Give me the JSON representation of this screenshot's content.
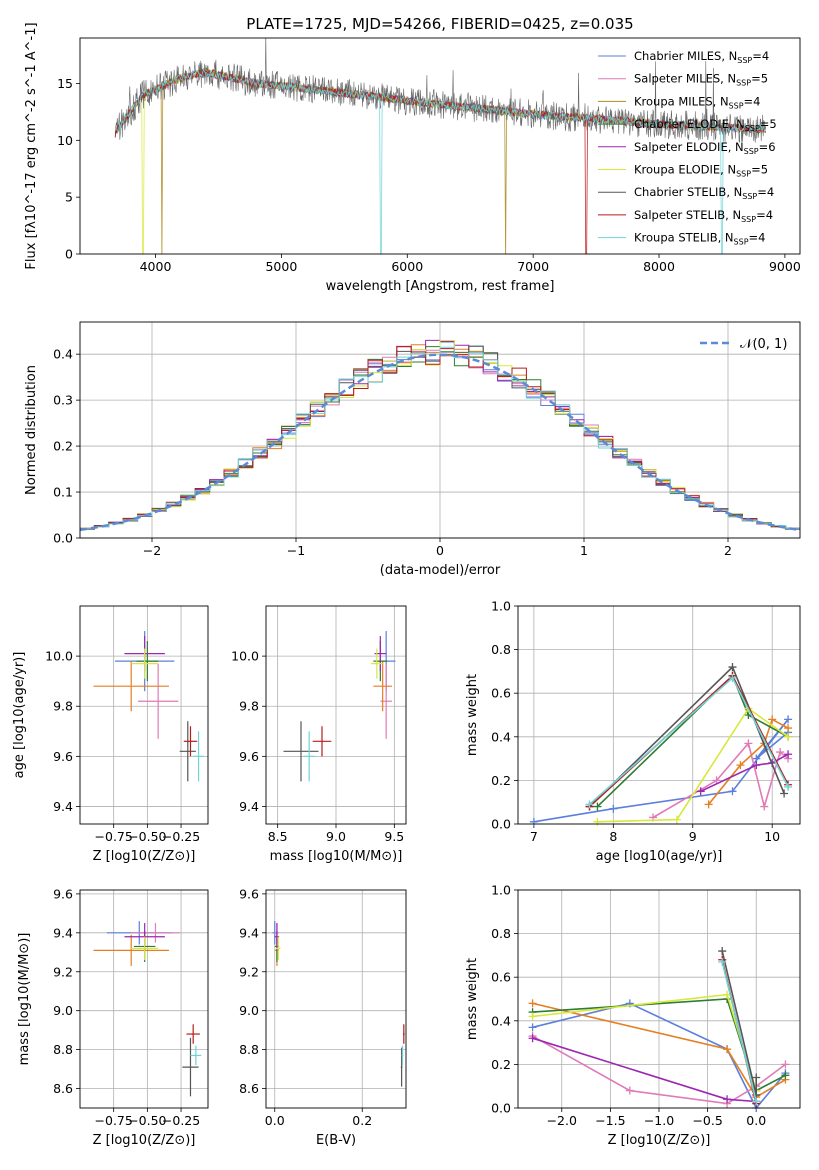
{
  "chart_data": [
    {
      "type": "line",
      "title": "PLATE=1725, MJD=54266, FIBERID=0425, z=0.035",
      "xlabel": "wavelength [Angstrom, rest frame]",
      "ylabel": "Flux [fλ10^-17 erg cm^-2 s^-1 A^-1]",
      "xlim": [
        3400,
        9120
      ],
      "ylim": [
        0,
        19
      ],
      "xticks": [
        "4000",
        "5000",
        "6000",
        "7000",
        "8000",
        "9000"
      ],
      "yticks": [
        "0",
        "5",
        "10",
        "15"
      ],
      "legend": "top-right",
      "series": [
        {
          "name": "Chabrier MILES, N_SSP=4",
          "color": "#5b7fdb"
        },
        {
          "name": "Salpeter MILES, N_SSP=5",
          "color": "#e07ab8"
        },
        {
          "name": "Kroupa MILES, N_SSP=4",
          "color": "#b08a20"
        },
        {
          "name": "Chabrier ELODIE, N_SSP=5",
          "color": "#2e7d32"
        },
        {
          "name": "Salpeter ELODIE, N_SSP=6",
          "color": "#9c27b0"
        },
        {
          "name": "Kroupa ELODIE, N_SSP=5",
          "color": "#d8e83a"
        },
        {
          "name": "Chabrier STELIB, N_SSP=4",
          "color": "#555555"
        },
        {
          "name": "Salpeter STELIB, N_SSP=4",
          "color": "#b71c1c"
        },
        {
          "name": "Kroupa STELIB, N_SSP=4",
          "color": "#6fd3d8"
        }
      ],
      "continuum": {
        "x": [
          3650,
          3700,
          3800,
          3900,
          4000,
          4100,
          4200,
          4400,
          4600,
          4800,
          5000,
          5200,
          5400,
          5600,
          5800,
          6000,
          6200,
          6400,
          6600,
          6800,
          7000,
          7200,
          7400,
          7600,
          7800,
          8000,
          8200,
          8400,
          8600,
          8800
        ],
        "y": [
          10.0,
          11.0,
          12.5,
          14.0,
          14.5,
          15.0,
          15.5,
          16.0,
          15.5,
          15.0,
          14.8,
          14.5,
          14.3,
          14.0,
          13.8,
          13.5,
          13.2,
          13.0,
          12.8,
          12.5,
          12.3,
          12.1,
          12.0,
          11.8,
          11.6,
          11.4,
          11.3,
          11.2,
          11.1,
          11.0
        ]
      }
    },
    {
      "type": "bar",
      "xlabel": "(data-model)/error",
      "ylabel": "Normed distribution",
      "xlim": [
        -2.5,
        2.5
      ],
      "ylim": [
        0,
        0.47
      ],
      "xticks": [
        "−2",
        "−1",
        "0",
        "1",
        "2"
      ],
      "yticks": [
        "0.0",
        "0.1",
        "0.2",
        "0.3",
        "0.4"
      ],
      "legend": "top-right",
      "legend_label": "𝒩(0, 1)",
      "bin_width": 0.1,
      "bins_x": [
        -2.5,
        2.5
      ],
      "reference_curve": "normal(0,1)",
      "series_colors": [
        "#5b7fdb",
        "#e07ab8",
        "#e67e22",
        "#2e7d32",
        "#9c27b0",
        "#d8e83a",
        "#555555",
        "#b71c1c",
        "#6fd3d8"
      ]
    },
    {
      "type": "scatter",
      "xlabel": "Z [log10(Z/Z⊙)]",
      "ylabel": "age  [log10(age/yr)]",
      "xlim": [
        -1.0,
        -0.05
      ],
      "ylim": [
        9.33,
        10.2
      ],
      "xticks": [
        "−0.75",
        "−0.50",
        "−0.25"
      ],
      "yticks": [
        "9.4",
        "9.6",
        "9.8",
        "10.0"
      ],
      "points": [
        {
          "x": -0.52,
          "y": 9.98,
          "xerr": 0.22,
          "yerr": 0.12,
          "color": "#5b7fdb"
        },
        {
          "x": -0.42,
          "y": 9.82,
          "xerr": 0.15,
          "yerr": 0.15,
          "color": "#e07ab8"
        },
        {
          "x": -0.62,
          "y": 9.88,
          "xerr": 0.28,
          "yerr": 0.1,
          "color": "#e67e22"
        },
        {
          "x": -0.5,
          "y": 9.98,
          "xerr": 0.08,
          "yerr": 0.08,
          "color": "#2e7d32"
        },
        {
          "x": -0.52,
          "y": 10.01,
          "xerr": 0.15,
          "yerr": 0.07,
          "color": "#9c27b0"
        },
        {
          "x": -0.52,
          "y": 9.97,
          "xerr": 0.1,
          "yerr": 0.06,
          "color": "#d8e83a"
        },
        {
          "x": -0.2,
          "y": 9.62,
          "xerr": 0.06,
          "yerr": 0.12,
          "color": "#555555"
        },
        {
          "x": -0.18,
          "y": 9.66,
          "xerr": 0.05,
          "yerr": 0.06,
          "color": "#b71c1c"
        },
        {
          "x": -0.12,
          "y": 9.6,
          "xerr": 0.04,
          "yerr": 0.1,
          "color": "#6fd3d8"
        }
      ]
    },
    {
      "type": "scatter",
      "xlabel": "mass [log10(M/M⊙)]",
      "ylabel": "",
      "xlim": [
        8.4,
        9.6
      ],
      "ylim": [
        9.33,
        10.2
      ],
      "xticks": [
        "8.5",
        "9.0",
        "9.5"
      ],
      "yticks": [
        "9.4",
        "9.6",
        "9.8",
        "10.0"
      ],
      "points": [
        {
          "x": 9.43,
          "y": 9.98,
          "xerr": 0.08,
          "yerr": 0.12,
          "color": "#5b7fdb"
        },
        {
          "x": 9.43,
          "y": 9.82,
          "xerr": 0.05,
          "yerr": 0.15,
          "color": "#e07ab8"
        },
        {
          "x": 9.4,
          "y": 9.88,
          "xerr": 0.08,
          "yerr": 0.1,
          "color": "#e67e22"
        },
        {
          "x": 9.38,
          "y": 9.98,
          "xerr": 0.06,
          "yerr": 0.08,
          "color": "#2e7d32"
        },
        {
          "x": 9.38,
          "y": 10.01,
          "xerr": 0.05,
          "yerr": 0.07,
          "color": "#9c27b0"
        },
        {
          "x": 9.35,
          "y": 9.97,
          "xerr": 0.05,
          "yerr": 0.06,
          "color": "#d8e83a"
        },
        {
          "x": 8.7,
          "y": 9.62,
          "xerr": 0.15,
          "yerr": 0.12,
          "color": "#555555"
        },
        {
          "x": 8.88,
          "y": 9.66,
          "xerr": 0.08,
          "yerr": 0.06,
          "color": "#b71c1c"
        },
        {
          "x": 8.77,
          "y": 9.6,
          "xerr": 0.05,
          "yerr": 0.1,
          "color": "#6fd3d8"
        }
      ]
    },
    {
      "type": "line",
      "xlabel": "age  [log10(age/yr)]",
      "ylabel": "mass weight",
      "xlim": [
        6.8,
        10.35
      ],
      "ylim": [
        0,
        1.0
      ],
      "xticks": [
        "7",
        "8",
        "9",
        "10"
      ],
      "yticks": [
        "0.0",
        "0.2",
        "0.4",
        "0.6",
        "0.8",
        "1.0"
      ],
      "series": [
        {
          "color": "#5b7fdb",
          "x": [
            7.0,
            8.0,
            9.5,
            10.2,
            9.8,
            10.2
          ],
          "y": [
            0.01,
            0.07,
            0.15,
            0.48,
            0.3,
            0.42
          ]
        },
        {
          "color": "#e07ab8",
          "x": [
            8.5,
            9.3,
            9.7,
            9.9,
            10.1,
            10.2
          ],
          "y": [
            0.03,
            0.2,
            0.37,
            0.08,
            0.33,
            0.3
          ]
        },
        {
          "color": "#e67e22",
          "x": [
            9.2,
            9.6,
            9.9,
            10.0,
            10.2
          ],
          "y": [
            0.09,
            0.27,
            0.37,
            0.48,
            0.44
          ]
        },
        {
          "color": "#2e7d32",
          "x": [
            7.8,
            9.5,
            9.7,
            10.2
          ],
          "y": [
            0.08,
            0.68,
            0.5,
            0.4
          ]
        },
        {
          "color": "#9c27b0",
          "x": [
            9.1,
            9.8,
            10.0,
            10.2
          ],
          "y": [
            0.15,
            0.27,
            0.28,
            0.32
          ]
        },
        {
          "color": "#d8e83a",
          "x": [
            7.8,
            8.8,
            9.7,
            10.2
          ],
          "y": [
            0.01,
            0.02,
            0.53,
            0.4
          ]
        },
        {
          "color": "#555555",
          "x": [
            7.7,
            9.5,
            10.15
          ],
          "y": [
            0.08,
            0.72,
            0.14
          ]
        },
        {
          "color": "#b71c1c",
          "x": [
            7.7,
            9.5,
            10.2
          ],
          "y": [
            0.08,
            0.68,
            0.18
          ]
        },
        {
          "color": "#6fd3d8",
          "x": [
            7.7,
            9.5,
            10.2
          ],
          "y": [
            0.09,
            0.67,
            0.17
          ]
        }
      ]
    },
    {
      "type": "scatter",
      "xlabel": "Z [log10(Z/Z⊙)]",
      "ylabel": "mass [log10(M/M⊙)]",
      "xlim": [
        -1.0,
        -0.05
      ],
      "ylim": [
        8.5,
        9.62
      ],
      "xticks": [
        "−0.75",
        "−0.50",
        "−0.25"
      ],
      "yticks": [
        "8.6",
        "8.8",
        "9.0",
        "9.2",
        "9.4",
        "9.6"
      ],
      "points": [
        {
          "x": -0.56,
          "y": 9.4,
          "xerr": 0.24,
          "yerr": 0.06,
          "color": "#5b7fdb"
        },
        {
          "x": -0.44,
          "y": 9.4,
          "xerr": 0.18,
          "yerr": 0.05,
          "color": "#e07ab8"
        },
        {
          "x": -0.62,
          "y": 9.31,
          "xerr": 0.28,
          "yerr": 0.08,
          "color": "#e67e22"
        },
        {
          "x": -0.52,
          "y": 9.33,
          "xerr": 0.08,
          "yerr": 0.08,
          "color": "#2e7d32"
        },
        {
          "x": -0.52,
          "y": 9.38,
          "xerr": 0.15,
          "yerr": 0.07,
          "color": "#9c27b0"
        },
        {
          "x": -0.52,
          "y": 9.32,
          "xerr": 0.1,
          "yerr": 0.06,
          "color": "#d8e83a"
        },
        {
          "x": -0.18,
          "y": 8.71,
          "xerr": 0.06,
          "yerr": 0.15,
          "color": "#555555"
        },
        {
          "x": -0.16,
          "y": 8.88,
          "xerr": 0.05,
          "yerr": 0.05,
          "color": "#b71c1c"
        },
        {
          "x": -0.14,
          "y": 8.77,
          "xerr": 0.04,
          "yerr": 0.05,
          "color": "#6fd3d8"
        }
      ]
    },
    {
      "type": "scatter",
      "xlabel": "E(B-V)",
      "ylabel": "",
      "xlim": [
        -0.02,
        0.3
      ],
      "ylim": [
        8.5,
        9.62
      ],
      "xticks": [
        "0.0",
        "0.2"
      ],
      "yticks": [
        "8.6",
        "8.8",
        "9.0",
        "9.2",
        "9.4",
        "9.6"
      ],
      "points": [
        {
          "x": 0.0,
          "y": 9.4,
          "xerr": 0.005,
          "yerr": 0.06,
          "color": "#5b7fdb"
        },
        {
          "x": 0.005,
          "y": 9.4,
          "xerr": 0.005,
          "yerr": 0.05,
          "color": "#e07ab8"
        },
        {
          "x": 0.005,
          "y": 9.31,
          "xerr": 0.005,
          "yerr": 0.08,
          "color": "#e67e22"
        },
        {
          "x": 0.005,
          "y": 9.33,
          "xerr": 0.005,
          "yerr": 0.08,
          "color": "#2e7d32"
        },
        {
          "x": 0.005,
          "y": 9.38,
          "xerr": 0.005,
          "yerr": 0.07,
          "color": "#9c27b0"
        },
        {
          "x": 0.008,
          "y": 9.32,
          "xerr": 0.005,
          "yerr": 0.06,
          "color": "#d8e83a"
        },
        {
          "x": 0.29,
          "y": 8.71,
          "xerr": 0.002,
          "yerr": 0.1,
          "color": "#555555"
        },
        {
          "x": 0.295,
          "y": 8.88,
          "xerr": 0.002,
          "yerr": 0.05,
          "color": "#b71c1c"
        },
        {
          "x": 0.292,
          "y": 8.77,
          "xerr": 0.002,
          "yerr": 0.05,
          "color": "#6fd3d8"
        }
      ]
    },
    {
      "type": "line",
      "xlabel": "Z [log10(Z/Z⊙)]",
      "ylabel": "mass weight",
      "xlim": [
        -2.45,
        0.45
      ],
      "ylim": [
        0,
        1.0
      ],
      "xticks": [
        "−2.0",
        "−1.5",
        "−1.0",
        "−0.5",
        "0.0"
      ],
      "yticks": [
        "0.0",
        "0.2",
        "0.4",
        "0.6",
        "0.8",
        "1.0"
      ],
      "series": [
        {
          "color": "#5b7fdb",
          "x": [
            -2.3,
            -1.3,
            -0.3,
            0.0,
            0.3
          ],
          "y": [
            0.37,
            0.48,
            0.27,
            0.0,
            0.16
          ]
        },
        {
          "color": "#e07ab8",
          "x": [
            -2.3,
            -1.3,
            -0.3,
            0.0,
            0.3
          ],
          "y": [
            0.33,
            0.08,
            0.02,
            0.1,
            0.2
          ]
        },
        {
          "color": "#e67e22",
          "x": [
            -2.3,
            -0.3,
            0.0,
            0.3
          ],
          "y": [
            0.48,
            0.27,
            0.05,
            0.13
          ]
        },
        {
          "color": "#2e7d32",
          "x": [
            -2.3,
            -0.3,
            0.0,
            0.3
          ],
          "y": [
            0.44,
            0.5,
            0.08,
            0.15
          ]
        },
        {
          "color": "#9c27b0",
          "x": [
            -2.3,
            -0.3,
            0.0
          ],
          "y": [
            0.32,
            0.04,
            0.03
          ]
        },
        {
          "color": "#d8e83a",
          "x": [
            -2.3,
            -0.3,
            0.0
          ],
          "y": [
            0.42,
            0.52,
            0.08
          ]
        },
        {
          "color": "#555555",
          "x": [
            -0.35,
            0.0,
            0.0
          ],
          "y": [
            0.72,
            0.06,
            0.14
          ]
        },
        {
          "color": "#b71c1c",
          "x": [
            -0.35,
            0.0
          ],
          "y": [
            0.68,
            0.02
          ]
        },
        {
          "color": "#6fd3d8",
          "x": [
            -0.35,
            0.0
          ],
          "y": [
            0.67,
            0.03
          ]
        }
      ]
    }
  ]
}
